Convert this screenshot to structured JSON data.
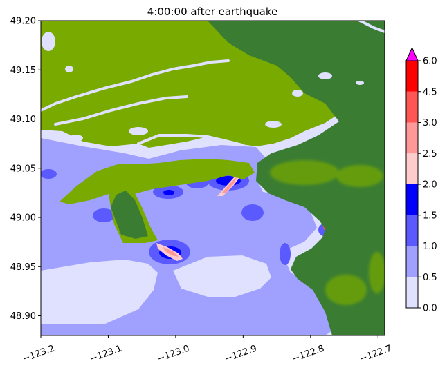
{
  "chart_data": {
    "type": "heatmap",
    "title": "4:00:00 after earthquake",
    "xlim": [
      -123.2,
      -122.69
    ],
    "ylim": [
      48.88,
      49.2
    ],
    "x_ticks": [
      -123.2,
      -123.1,
      -123.0,
      -122.9,
      -122.8,
      -122.7
    ],
    "x_tick_labels": [
      "−123.2",
      "−123.1",
      "−123.0",
      "−122.9",
      "−122.8",
      "−122.7"
    ],
    "y_ticks": [
      48.9,
      48.95,
      49.0,
      49.05,
      49.1,
      49.15,
      49.2
    ],
    "y_tick_labels": [
      "48.90",
      "48.95",
      "49.00",
      "49.05",
      "49.10",
      "49.15",
      "49.20"
    ],
    "colorbar": {
      "levels": [
        0.0,
        0.5,
        1.0,
        1.5,
        2.0,
        2.5,
        3.0,
        4.5,
        6.0
      ],
      "level_labels": [
        "0.0",
        "0.5",
        "1.0",
        "1.5",
        "2.0",
        "2.5",
        "3.0",
        "4.5",
        "6.0"
      ],
      "colors": [
        "#e0e0ff",
        "#a0a0ff",
        "#5a5aff",
        "#0000ff",
        "#ffcccc",
        "#ff9999",
        "#ff5555",
        "#ff0000"
      ],
      "extend_max_color": "#ff00ff",
      "extend": "max"
    },
    "land_colors": {
      "lowland": "#78aa00",
      "upland": "#3a7d32"
    },
    "xlabel": "",
    "ylabel": ""
  }
}
